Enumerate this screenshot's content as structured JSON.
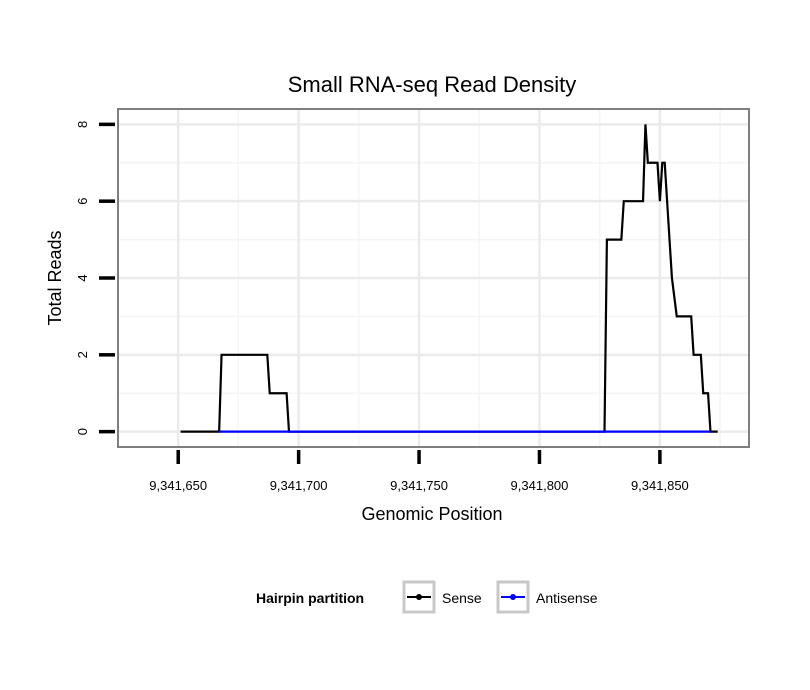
{
  "chart_data": {
    "type": "line",
    "title": "Small RNA-seq Read Density",
    "xlabel": "Genomic Position",
    "ylabel": "Total Reads",
    "xlim": [
      9341625,
      9341887
    ],
    "ylim": [
      -0.4,
      8.4
    ],
    "x_ticks": [
      9341650,
      9341700,
      9341750,
      9341800,
      9341850
    ],
    "x_tick_labels": [
      "9,341,650",
      "9,341,700",
      "9,341,750",
      "9,341,800",
      "9,341,850"
    ],
    "y_ticks": [
      0,
      2,
      4,
      6,
      8
    ],
    "y_tick_labels": [
      "0",
      "2",
      "4",
      "6",
      "8"
    ],
    "grid": true,
    "legend": {
      "title": "Hairpin partition",
      "position": "bottom"
    },
    "series": [
      {
        "name": "Sense",
        "color": "#000000",
        "x": [
          9341651,
          9341667,
          9341668,
          9341687,
          9341688,
          9341695,
          9341696,
          9341827,
          9341828,
          9341834,
          9341835,
          9341843,
          9341844,
          9341845,
          9341849,
          9341850,
          9341851,
          9341852,
          9341853,
          9341855,
          9341857,
          9341863,
          9341864,
          9341867,
          9341868,
          9341870,
          9341871,
          9341873,
          9341874
        ],
        "y": [
          0,
          0,
          2,
          2,
          1,
          1,
          0,
          0,
          5,
          5,
          6,
          6,
          8,
          7,
          7,
          6,
          7,
          7,
          6,
          4,
          3,
          3,
          2,
          2,
          1,
          1,
          0,
          0,
          0
        ]
      },
      {
        "name": "Antisense",
        "color": "#0000ff",
        "x": [
          9341667,
          9341696,
          9341827,
          9341871
        ],
        "y": [
          0,
          0,
          0,
          0
        ]
      }
    ]
  }
}
